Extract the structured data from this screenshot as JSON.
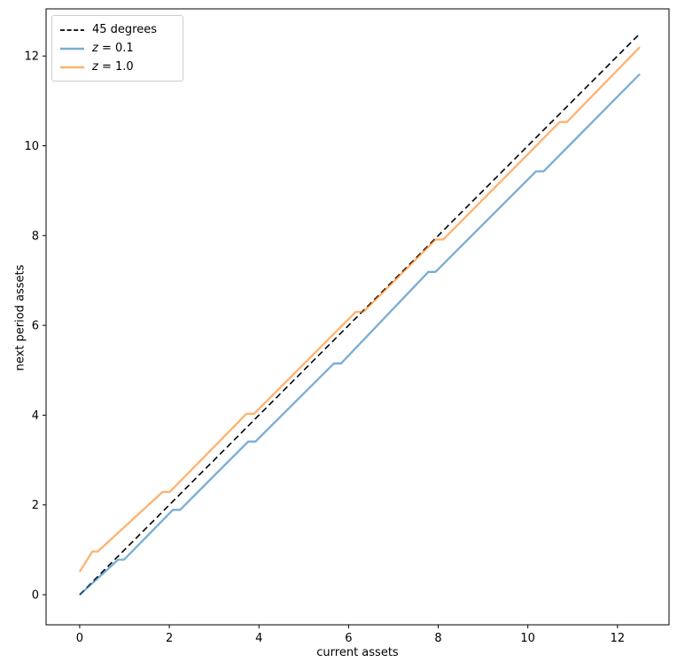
{
  "chart_data": {
    "type": "line",
    "title": "",
    "xlabel": "current assets",
    "ylabel": "next period assets",
    "xlim": [
      -0.75,
      13.15
    ],
    "ylim": [
      -0.67,
      13.05
    ],
    "x_ticks": [
      0,
      2,
      4,
      6,
      8,
      10,
      12
    ],
    "y_ticks": [
      0,
      2,
      4,
      6,
      8,
      10,
      12
    ],
    "grid": false,
    "legend_position": "upper left",
    "series": [
      {
        "name": "45 degrees",
        "style": "dashed",
        "color": "#000000",
        "opacity": 1,
        "linewidth": 1.6,
        "points": [
          [
            0,
            0
          ],
          [
            12.5,
            12.5
          ]
        ]
      },
      {
        "name": "z = 0.1",
        "style": "solid",
        "color": "#1f77b4",
        "opacity": 0.6,
        "linewidth": 2.3,
        "points": [
          [
            0,
            0
          ],
          [
            0.86,
            0.78
          ],
          [
            0.99,
            0.78
          ],
          [
            2.08,
            1.89
          ],
          [
            2.24,
            1.89
          ],
          [
            3.76,
            3.41
          ],
          [
            3.92,
            3.41
          ],
          [
            5.67,
            5.15
          ],
          [
            5.83,
            5.15
          ],
          [
            7.78,
            7.19
          ],
          [
            7.94,
            7.19
          ],
          [
            10.18,
            9.43
          ],
          [
            10.35,
            9.43
          ],
          [
            12.5,
            11.6
          ]
        ]
      },
      {
        "name": "z = 1.0",
        "style": "solid",
        "color": "#ff7f0e",
        "opacity": 0.6,
        "linewidth": 2.3,
        "points": [
          [
            0,
            0.51
          ],
          [
            0.28,
            0.96
          ],
          [
            0.4,
            0.96
          ],
          [
            1.85,
            2.29
          ],
          [
            2.01,
            2.29
          ],
          [
            3.72,
            4.03
          ],
          [
            3.89,
            4.03
          ],
          [
            6.16,
            6.3
          ],
          [
            6.33,
            6.3
          ],
          [
            7.94,
            7.91
          ],
          [
            8.11,
            7.91
          ],
          [
            10.71,
            10.53
          ],
          [
            10.87,
            10.53
          ],
          [
            12.5,
            12.2
          ]
        ]
      }
    ]
  },
  "axes": {
    "xlabel": "current assets",
    "ylabel": "next period assets"
  },
  "legend": {
    "items": [
      {
        "label_var": "",
        "label_text": "45 degrees"
      },
      {
        "label_var": "z",
        "label_text": " = 0.1"
      },
      {
        "label_var": "z",
        "label_text": " = 1.0"
      }
    ]
  },
  "colors": {
    "line_45": "#000000",
    "line_z01": "#1f77b4",
    "line_z10": "#ff7f0e",
    "frame": "#000000",
    "legend_border": "#cccccc",
    "background": "#ffffff"
  }
}
